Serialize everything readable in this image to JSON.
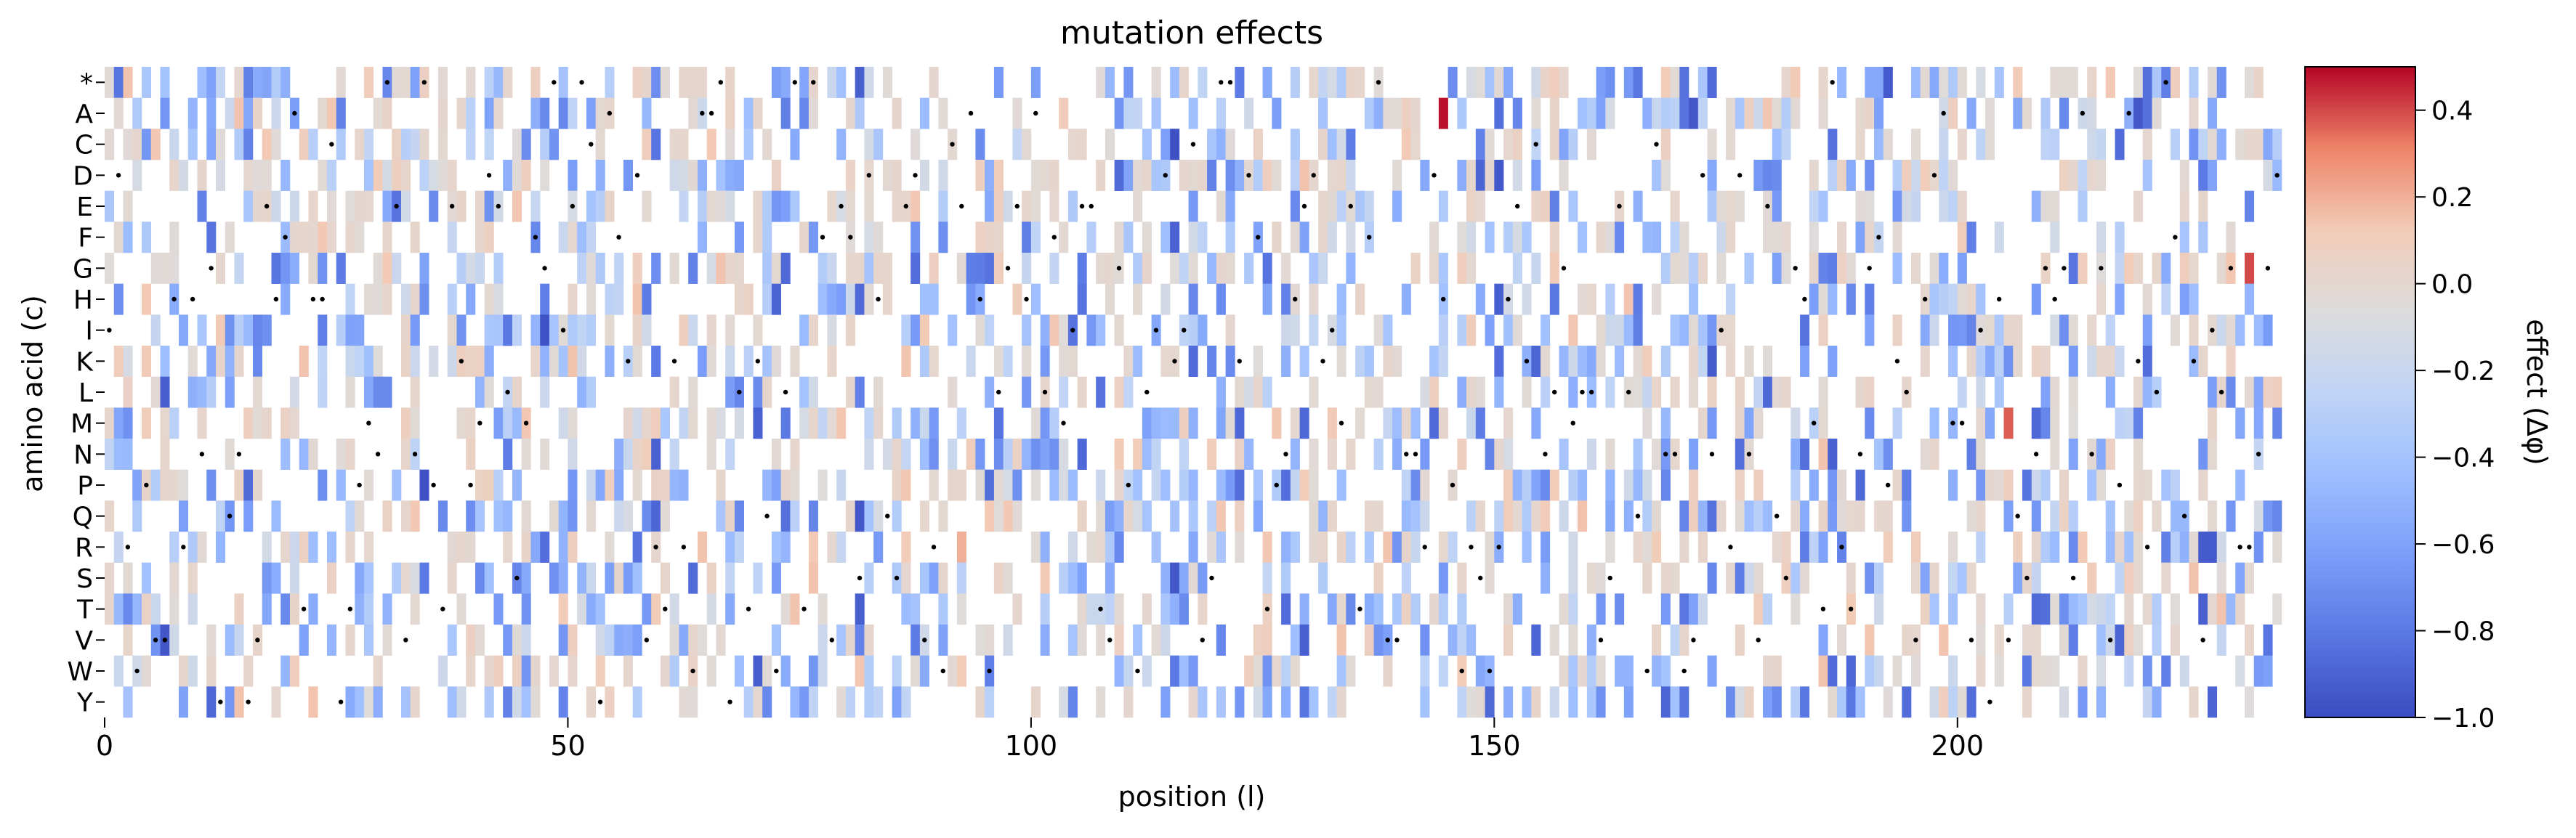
{
  "chart_data": {
    "type": "heatmap",
    "title": "mutation effects",
    "xlabel": "position (l)",
    "ylabel": "amino acid (c)",
    "colorbar_label": "effect (Δφ)",
    "colormap": "coolwarm",
    "x_range": [
      0,
      235
    ],
    "x_ticks": [
      0,
      50,
      100,
      150,
      200
    ],
    "y_categories": [
      "*",
      "A",
      "C",
      "D",
      "E",
      "F",
      "G",
      "H",
      "I",
      "K",
      "L",
      "M",
      "N",
      "P",
      "Q",
      "R",
      "S",
      "T",
      "V",
      "W",
      "Y"
    ],
    "color_range": [
      -1.0,
      0.5
    ],
    "colorbar_ticks": [
      0.4,
      0.2,
      0.0,
      -0.2,
      -0.4,
      -0.6,
      -0.8,
      -1.0
    ],
    "colorbar_tick_labels": [
      "0.4",
      "0.2",
      "0.0",
      "−0.2",
      "−0.4",
      "−0.6",
      "−0.8",
      "−1.0"
    ],
    "missing_fraction": 0.55,
    "wild_type_marker": "black dot",
    "grid": false,
    "legend": "colorbar right",
    "highlighted_cells": [
      {
        "position": 144,
        "amino_acid": "A",
        "effect": 0.48
      },
      {
        "position": 231,
        "amino_acid": "G",
        "effect": 0.4
      },
      {
        "position": 205,
        "amino_acid": "M",
        "effect": 0.37
      },
      {
        "position": 64,
        "amino_acid": "R",
        "effect": 0.15
      },
      {
        "position": 92,
        "amino_acid": "R",
        "effect": 0.2
      }
    ]
  }
}
